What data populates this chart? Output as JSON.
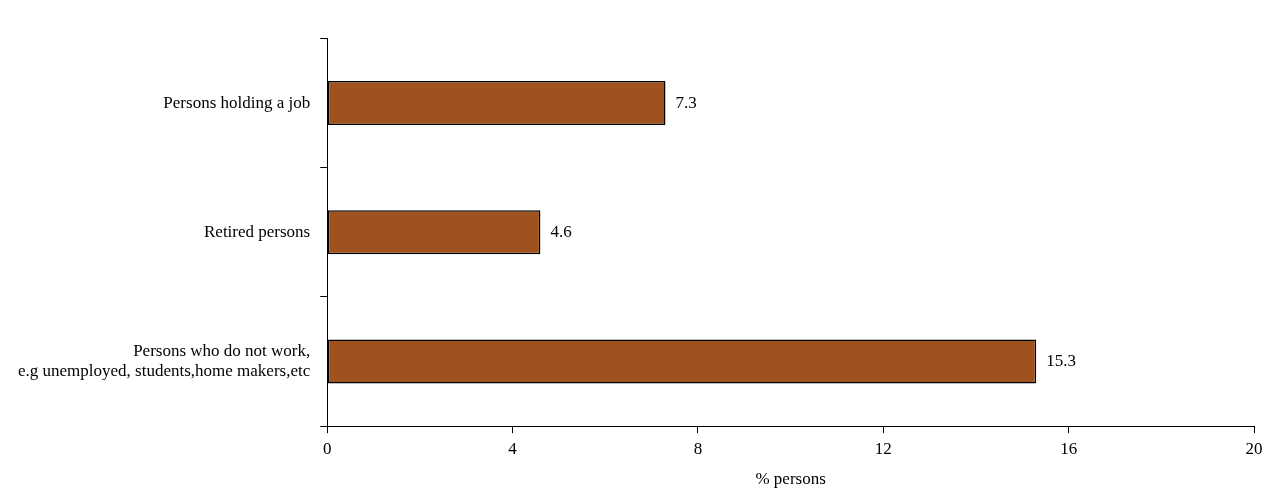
{
  "chart_data": {
    "type": "bar",
    "orientation": "horizontal",
    "xlabel": "% persons",
    "categories": [
      "Persons holding a job",
      "Retired persons",
      "Persons who do not work,\ne.g unemployed, students,home makers,etc"
    ],
    "values": [
      7.3,
      4.6,
      15.3
    ],
    "color": "#a0521e",
    "xlim": [
      0,
      20
    ],
    "xticks": [
      0,
      4,
      8,
      12,
      16,
      20
    ],
    "grid": false,
    "legend": false,
    "data_labels": true
  }
}
